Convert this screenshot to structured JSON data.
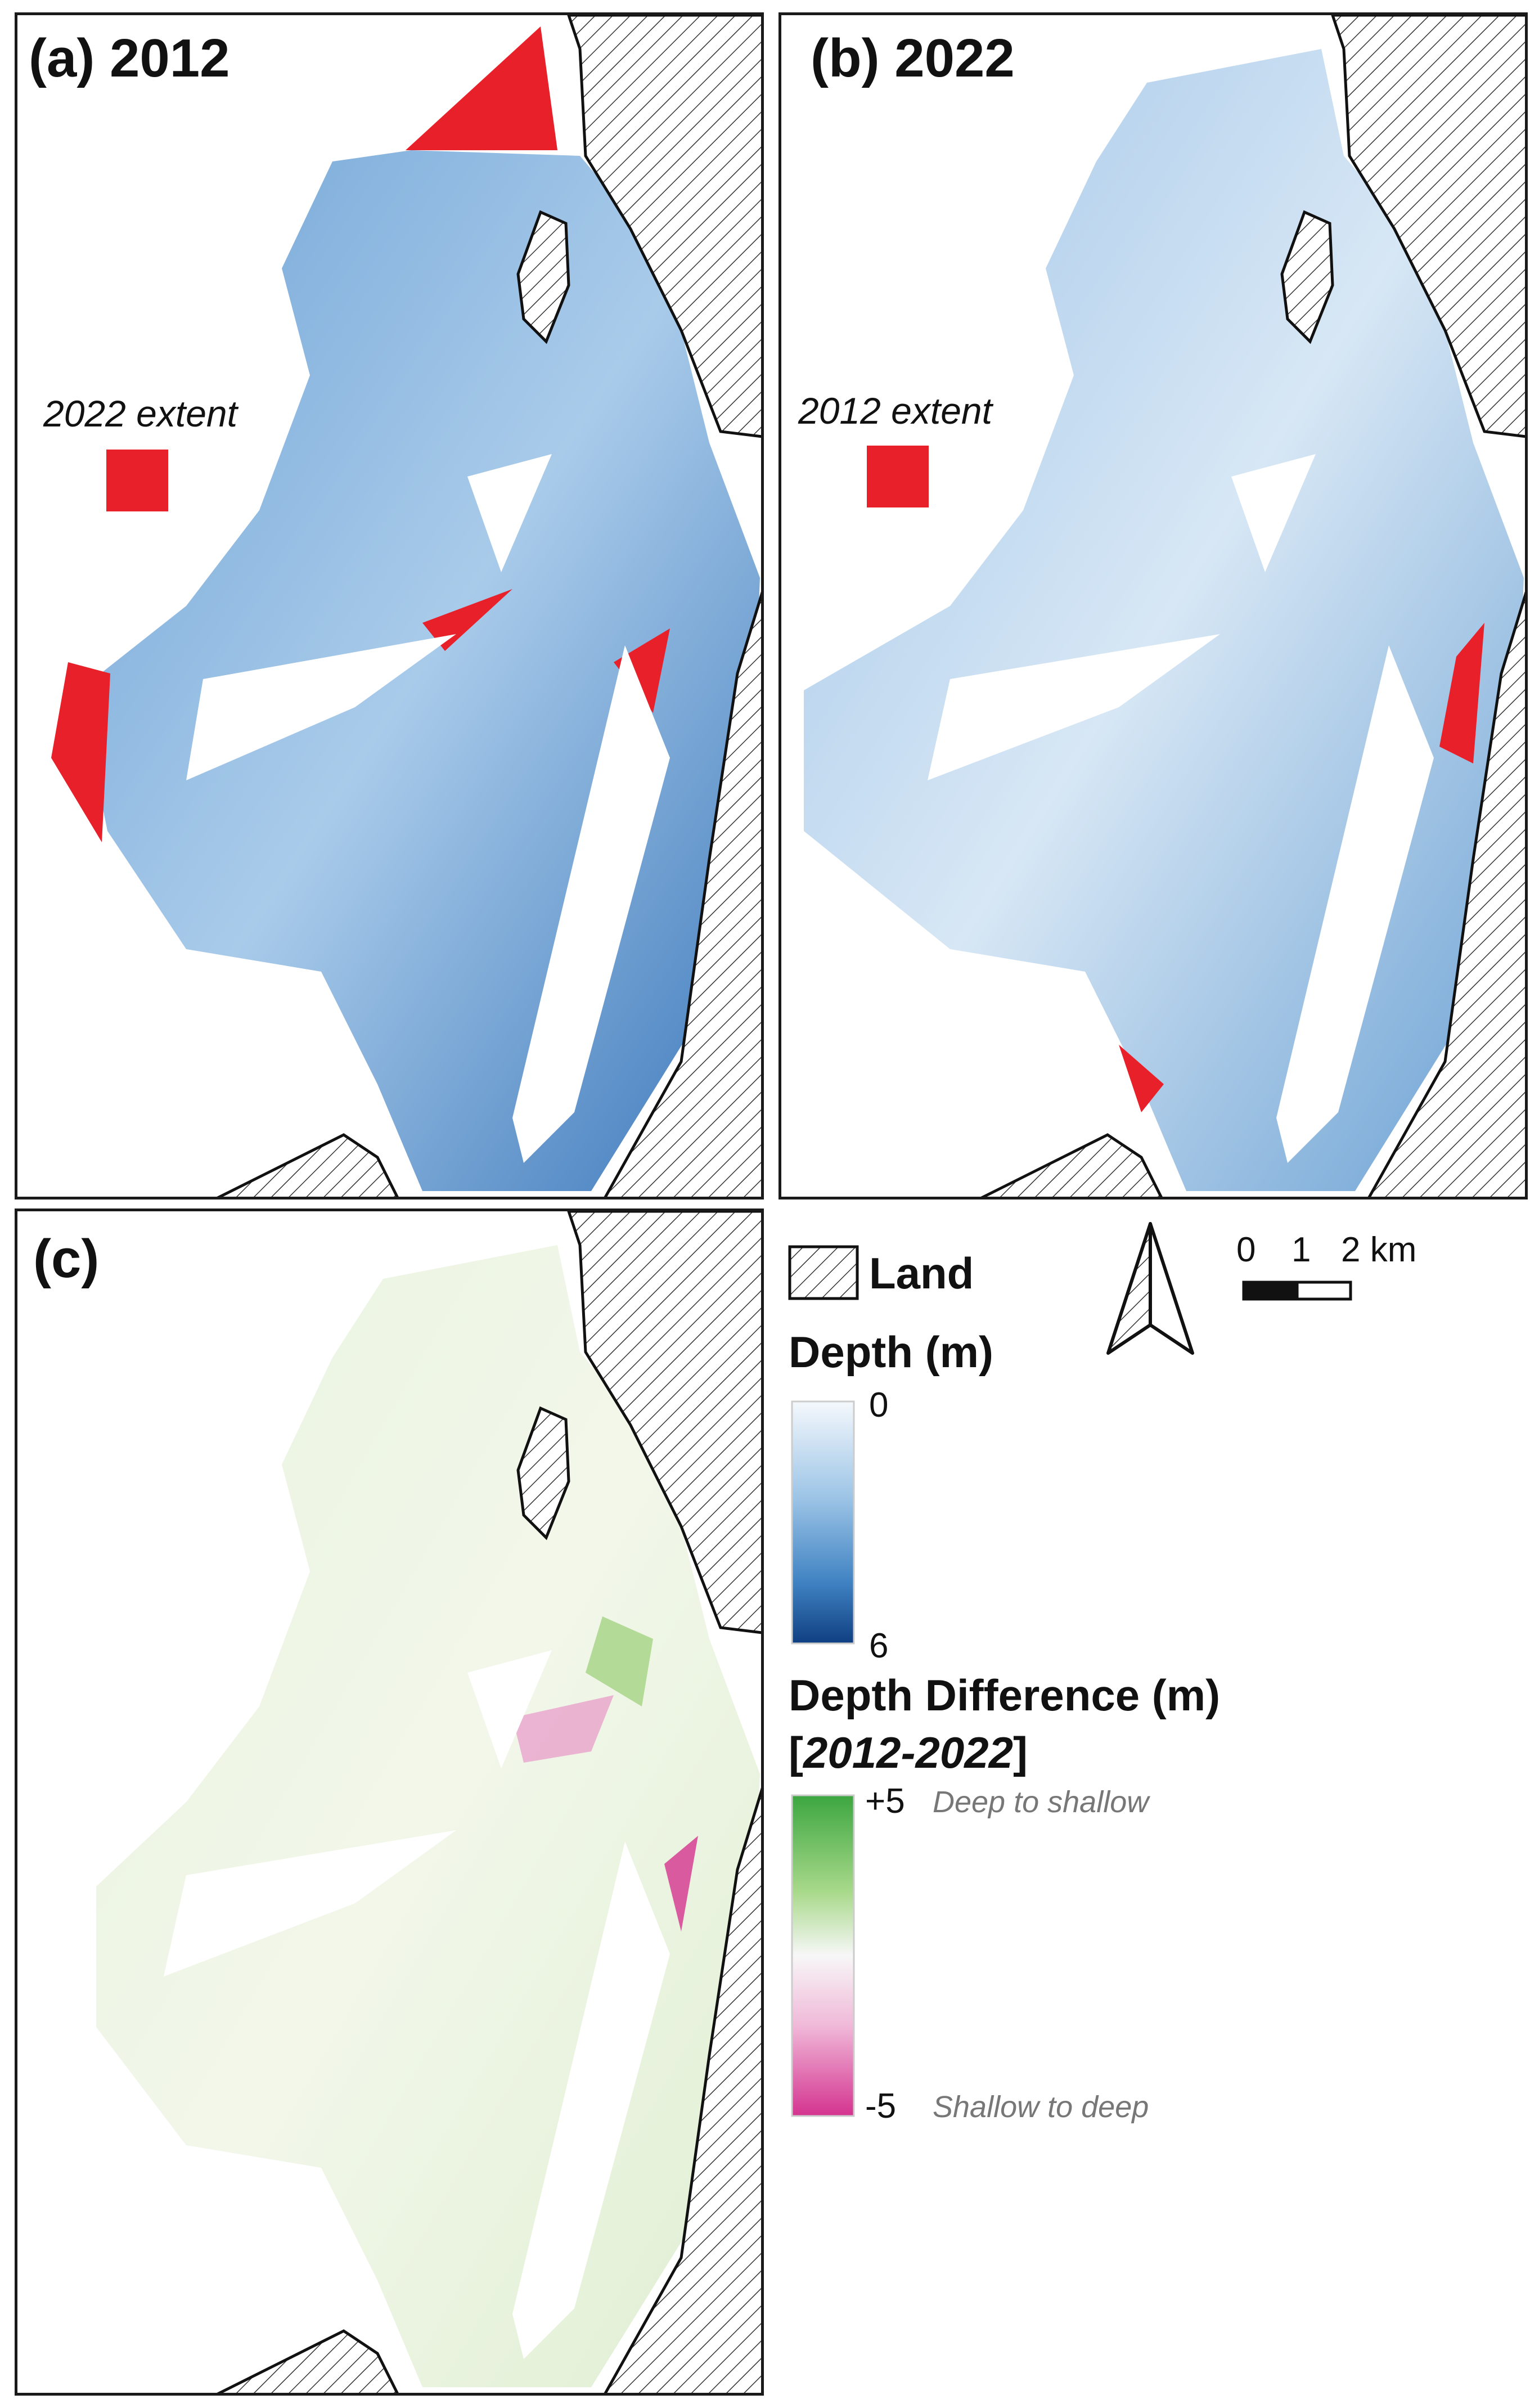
{
  "panels": {
    "a": {
      "title": "(a) 2012",
      "extent_label": "2022 extent"
    },
    "b": {
      "title": "(b) 2022",
      "extent_label": "2012 extent"
    },
    "c": {
      "title": "(c)"
    }
  },
  "legend": {
    "land_label": "Land",
    "depth_title": "Depth (m)",
    "depth_min": "0",
    "depth_max": "6",
    "diff_title": "Depth Difference (m)",
    "diff_subtitle_open": "[",
    "diff_subtitle_years": "2012-2022",
    "diff_subtitle_close": "]",
    "diff_max": "+5",
    "diff_min": "-5",
    "diff_max_note": "Deep to shallow",
    "diff_min_note": "Shallow to deep"
  },
  "scale_bar": {
    "ticks": [
      "0",
      "1",
      "2 km"
    ]
  },
  "icons": {
    "north_arrow": "north-arrow-icon",
    "land_pattern": "hatch-pattern"
  },
  "colors": {
    "extent_red": "#e8202a",
    "depth_shallow": "#f4f8fc",
    "depth_deep": "#0f3f82",
    "diff_shallowing": "#3ca640",
    "diff_deepening": "#d4338f",
    "land_outline": "#111111"
  }
}
